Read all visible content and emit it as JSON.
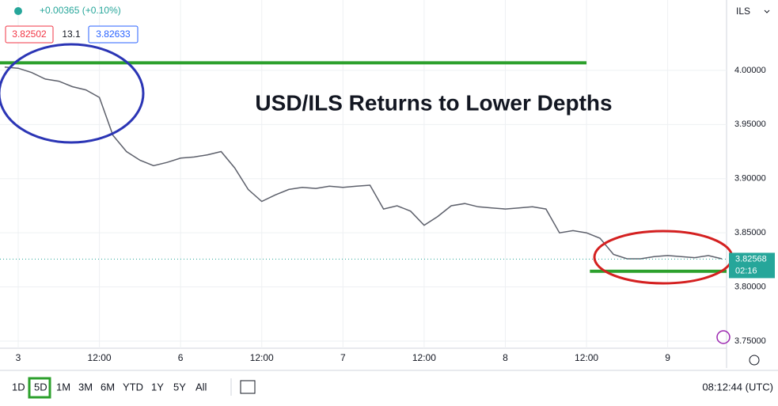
{
  "chart_data": {
    "type": "line",
    "title": "USD/ILS Returns to Lower Depths",
    "change": "+0.00365 (+0.10%)",
    "bid": "3.82502",
    "spread": "13.1",
    "ask": "3.82633",
    "currency": "ILS",
    "x": [
      -2,
      0,
      2,
      4,
      6,
      8,
      10,
      12,
      14,
      16,
      18,
      20,
      22,
      24,
      26,
      28,
      30,
      32,
      34,
      36,
      38,
      40,
      42,
      44,
      46,
      48,
      50,
      52,
      54,
      56,
      58,
      60,
      62,
      64,
      66,
      68,
      70,
      72,
      74,
      76,
      78,
      80,
      82,
      84,
      86,
      88,
      90,
      92,
      94,
      96,
      98,
      100,
      102,
      104
    ],
    "series": [
      {
        "name": "USD/ILS",
        "color": "#5d606b",
        "values": [
          4.003,
          4.002,
          3.998,
          3.992,
          3.99,
          3.985,
          3.982,
          3.975,
          3.94,
          3.925,
          3.917,
          3.912,
          3.915,
          3.919,
          3.92,
          3.922,
          3.925,
          3.91,
          3.89,
          3.879,
          3.885,
          3.89,
          3.892,
          3.891,
          3.893,
          3.892,
          3.893,
          3.894,
          3.872,
          3.875,
          3.87,
          3.857,
          3.865,
          3.875,
          3.877,
          3.874,
          3.873,
          3.872,
          3.873,
          3.874,
          3.872,
          3.85,
          3.852,
          3.85,
          3.845,
          3.83,
          3.826,
          3.826,
          3.828,
          3.829,
          3.828,
          3.827,
          3.829,
          3.826
        ]
      }
    ],
    "xlim": [
      -2.69,
      104.7
    ],
    "xticks": [
      {
        "value": 0,
        "label": "3"
      },
      {
        "value": 12,
        "label": "12:00"
      },
      {
        "value": 24,
        "label": "6"
      },
      {
        "value": 36,
        "label": "12:00"
      },
      {
        "value": 48,
        "label": "7"
      },
      {
        "value": 60,
        "label": "12:00"
      },
      {
        "value": 72,
        "label": "8"
      },
      {
        "value": 84,
        "label": "12:00"
      },
      {
        "value": 96,
        "label": "9"
      }
    ],
    "ylim": [
      3.7434,
      4.065
    ],
    "yticks": [
      {
        "value": 3.75,
        "label": "3.75000"
      },
      {
        "value": 3.8,
        "label": "3.80000"
      },
      {
        "value": 3.85,
        "label": "3.85000"
      },
      {
        "value": 3.9,
        "label": "3.90000"
      },
      {
        "value": 3.95,
        "label": "3.95000"
      },
      {
        "value": 4,
        "label": "4.00000"
      }
    ],
    "grid": true,
    "hlines": [
      {
        "value": 4.007,
        "from": -2.69,
        "to": 84,
        "color": "#2ca02c"
      },
      {
        "value": 3.8145,
        "from": 84.5,
        "to": 104.7,
        "color": "#2ca02c"
      }
    ],
    "last_price": 3.82568,
    "countdown": "02:16"
  },
  "toolbar": {
    "ranges": [
      "1D",
      "5D",
      "1M",
      "3M",
      "6M",
      "YTD",
      "1Y",
      "5Y",
      "All"
    ],
    "active": 1,
    "clock": "08:12:44 (UTC)"
  }
}
